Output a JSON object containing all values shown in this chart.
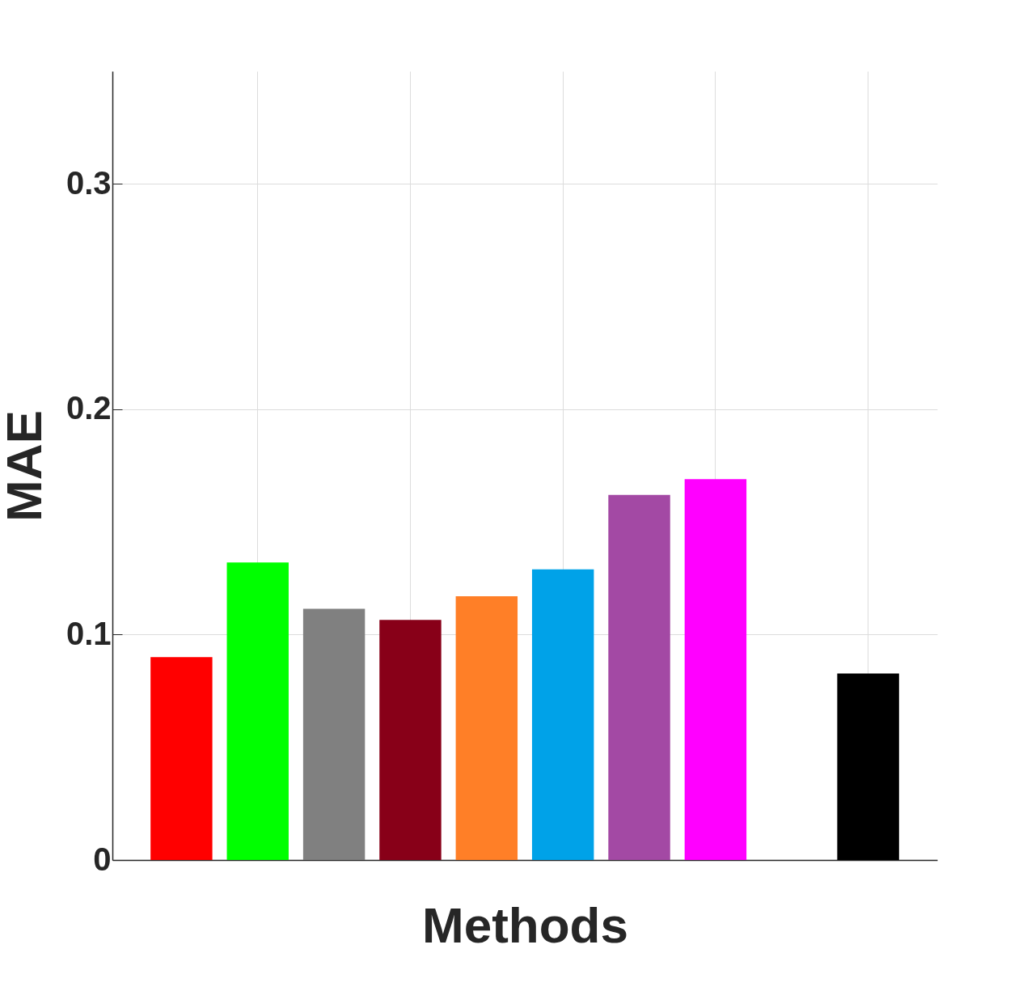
{
  "chart_data": {
    "type": "bar",
    "xlabel": "Methods",
    "ylabel": "MAE",
    "categories": [
      null,
      null,
      null,
      null,
      null,
      null,
      null,
      null,
      null,
      null
    ],
    "values": [
      0.09,
      0.132,
      0.1115,
      0.1065,
      0.117,
      0.129,
      0.162,
      0.169,
      0,
      0.0827
    ],
    "colors": [
      "#ff0000",
      "#00ff00",
      "#808080",
      "#880018",
      "#ff7f27",
      "#00a2e8",
      "#a349a4",
      "#ff00ff",
      "#1ec0e8",
      "#000000"
    ],
    "ylim": [
      0,
      0.35
    ],
    "yticks": [
      0,
      0.1,
      0.2,
      0.3
    ],
    "grid": true
  }
}
